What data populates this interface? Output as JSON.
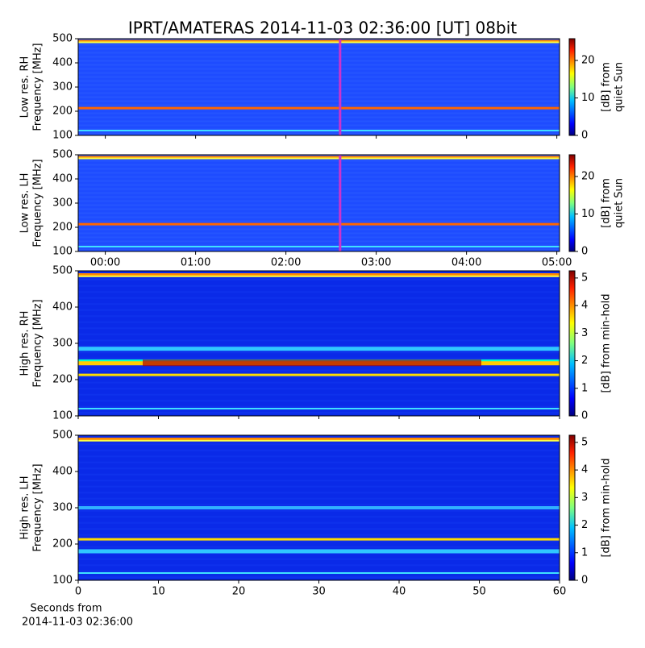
{
  "chart_data": [
    {
      "type": "spectrogram",
      "title": "IPRT/AMATERAS 2014-11-03 02:36:00 [UT]   08bit",
      "ylabel": [
        "Low res. RH",
        "Frequency [MHz]"
      ],
      "ylim": [
        100,
        500
      ],
      "yticks": [
        100,
        200,
        300,
        400,
        500
      ],
      "xlim": [
        -0.3,
        5.03
      ],
      "xticks": [
        0,
        1,
        2,
        3,
        4,
        5
      ],
      "marker_x": 2.6,
      "marker_color": "#cc33cc",
      "colorbar_label": [
        "[dB] from",
        "quiet Sun"
      ],
      "clim": [
        0,
        25.8
      ],
      "cticks": [
        0,
        10,
        20
      ]
    },
    {
      "type": "spectrogram",
      "ylabel": [
        "Low res. LH",
        "Frequency [MHz]"
      ],
      "ylim": [
        100,
        500
      ],
      "yticks": [
        100,
        200,
        300,
        400,
        500
      ],
      "xlim": [
        -0.3,
        5.03
      ],
      "xticks": [
        {
          "value": 0,
          "label": "00:00"
        },
        {
          "value": 1,
          "label": "01:00"
        },
        {
          "value": 2,
          "label": "02:00"
        },
        {
          "value": 3,
          "label": "03:00"
        },
        {
          "value": 4,
          "label": "04:00"
        },
        {
          "value": 5,
          "label": "05:00"
        }
      ],
      "marker_x": 2.6,
      "marker_color": "#cc33cc",
      "colorbar_label": [
        "[dB] from",
        "quiet Sun"
      ],
      "clim": [
        0,
        25.8
      ],
      "cticks": [
        0,
        10,
        20
      ]
    },
    {
      "type": "spectrogram",
      "ylabel": [
        "High res. RH",
        "Frequency [MHz]"
      ],
      "ylim": [
        100,
        500
      ],
      "yticks": [
        100,
        200,
        300,
        400,
        500
      ],
      "xlim": [
        0,
        60
      ],
      "xticks": [
        0,
        10,
        20,
        30,
        40,
        50,
        60
      ],
      "colorbar_label": [
        "[dB] from min-hold"
      ],
      "clim": [
        0,
        5.26
      ],
      "cticks": [
        0,
        1,
        2,
        3,
        4,
        5
      ]
    },
    {
      "type": "spectrogram",
      "ylabel": [
        "High res. LH",
        "Frequency [MHz]"
      ],
      "ylim": [
        100,
        500
      ],
      "yticks": [
        100,
        200,
        300,
        400,
        500
      ],
      "xlim": [
        0,
        60
      ],
      "xticks": [
        0,
        10,
        20,
        30,
        40,
        50,
        60
      ],
      "xticks_labeled": true,
      "xlabel": [
        "Seconds from",
        "2014-11-03 02:36:00"
      ],
      "colorbar_label": [
        "[dB] from min-hold"
      ],
      "clim": [
        0,
        5.26
      ],
      "cticks": [
        0,
        1,
        2,
        3,
        4,
        5
      ]
    }
  ]
}
